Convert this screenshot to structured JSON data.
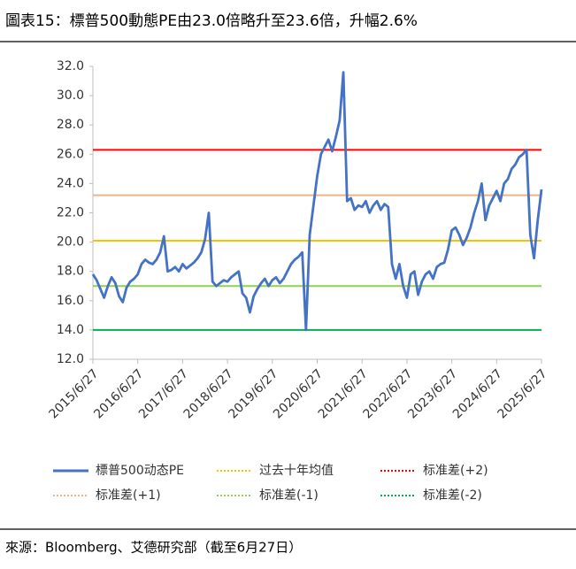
{
  "chart_data": {
    "type": "line",
    "title": "圖表15：標普500動態PE由23.0倍略升至23.6倍，升幅2.6%",
    "source": "來源：Bloomberg、艾德研究部（截至6月27日）",
    "xticks": [
      "2015/6/27",
      "2016/6/27",
      "2017/6/27",
      "2018/6/27",
      "2019/6/27",
      "2020/6/27",
      "2021/6/27",
      "2022/6/27",
      "2023/6/27",
      "2024/6/27",
      "2025/6/27"
    ],
    "ylim": [
      12,
      32
    ],
    "yticks": [
      {
        "value": 12,
        "label": "12.0"
      },
      {
        "value": 14,
        "label": "14.0"
      },
      {
        "value": 16,
        "label": "16.0"
      },
      {
        "value": 18,
        "label": "18.0"
      },
      {
        "value": 20,
        "label": "20.0"
      },
      {
        "value": 22,
        "label": "22.0"
      },
      {
        "value": 24,
        "label": "24.0"
      },
      {
        "value": 26,
        "label": "26.0"
      },
      {
        "value": 28,
        "label": "28.0"
      },
      {
        "value": 30,
        "label": "30.0"
      },
      {
        "value": 32,
        "label": "32.0"
      }
    ],
    "series": [
      {
        "name": "標普500动态PE",
        "color": "#4472c4",
        "values": [
          17.8,
          17.4,
          16.8,
          16.2,
          17.0,
          17.6,
          17.2,
          16.3,
          15.9,
          16.9,
          17.3,
          17.5,
          17.8,
          18.5,
          18.8,
          18.6,
          18.5,
          18.8,
          19.3,
          20.4,
          18.0,
          18.1,
          18.3,
          18.0,
          18.5,
          18.2,
          18.4,
          18.6,
          18.9,
          19.3,
          20.2,
          22.0,
          17.3,
          17.0,
          17.2,
          17.4,
          17.3,
          17.6,
          17.8,
          18.0,
          16.5,
          16.2,
          15.2,
          16.3,
          16.8,
          17.2,
          17.5,
          17.0,
          17.4,
          17.6,
          17.2,
          17.5,
          18.0,
          18.5,
          18.8,
          19.0,
          19.3,
          14.0,
          20.5,
          22.5,
          24.5,
          26.0,
          26.5,
          27.0,
          26.2,
          27.2,
          28.3,
          31.6,
          22.8,
          23.0,
          22.2,
          22.5,
          22.4,
          22.8,
          22.0,
          22.5,
          22.8,
          22.2,
          22.6,
          22.4,
          18.5,
          17.5,
          18.5,
          17.0,
          16.2,
          17.8,
          18.0,
          16.4,
          17.3,
          17.8,
          18.0,
          17.5,
          18.3,
          18.5,
          18.6,
          19.5,
          20.8,
          21.0,
          20.5,
          19.8,
          20.3,
          21.0,
          22.0,
          22.8,
          24.0,
          21.5,
          22.5,
          23.0,
          23.5,
          22.8,
          24.0,
          24.3,
          25.0,
          25.3,
          25.8,
          26.0,
          26.3,
          20.5,
          18.9,
          21.5,
          23.6
        ]
      }
    ],
    "reference_lines": [
      {
        "name": "过去十年均值",
        "value": 20.1,
        "color": "#ffc000"
      },
      {
        "name": "标准差(+2)",
        "value": 26.3,
        "color": "#ff0000"
      },
      {
        "name": "标准差(+1)",
        "value": 23.2,
        "color": "#f4b183"
      },
      {
        "name": "标准差(-1)",
        "value": 17.0,
        "color": "#92d050"
      },
      {
        "name": "标准差(-2)",
        "value": 14.0,
        "color": "#00b050"
      }
    ]
  }
}
